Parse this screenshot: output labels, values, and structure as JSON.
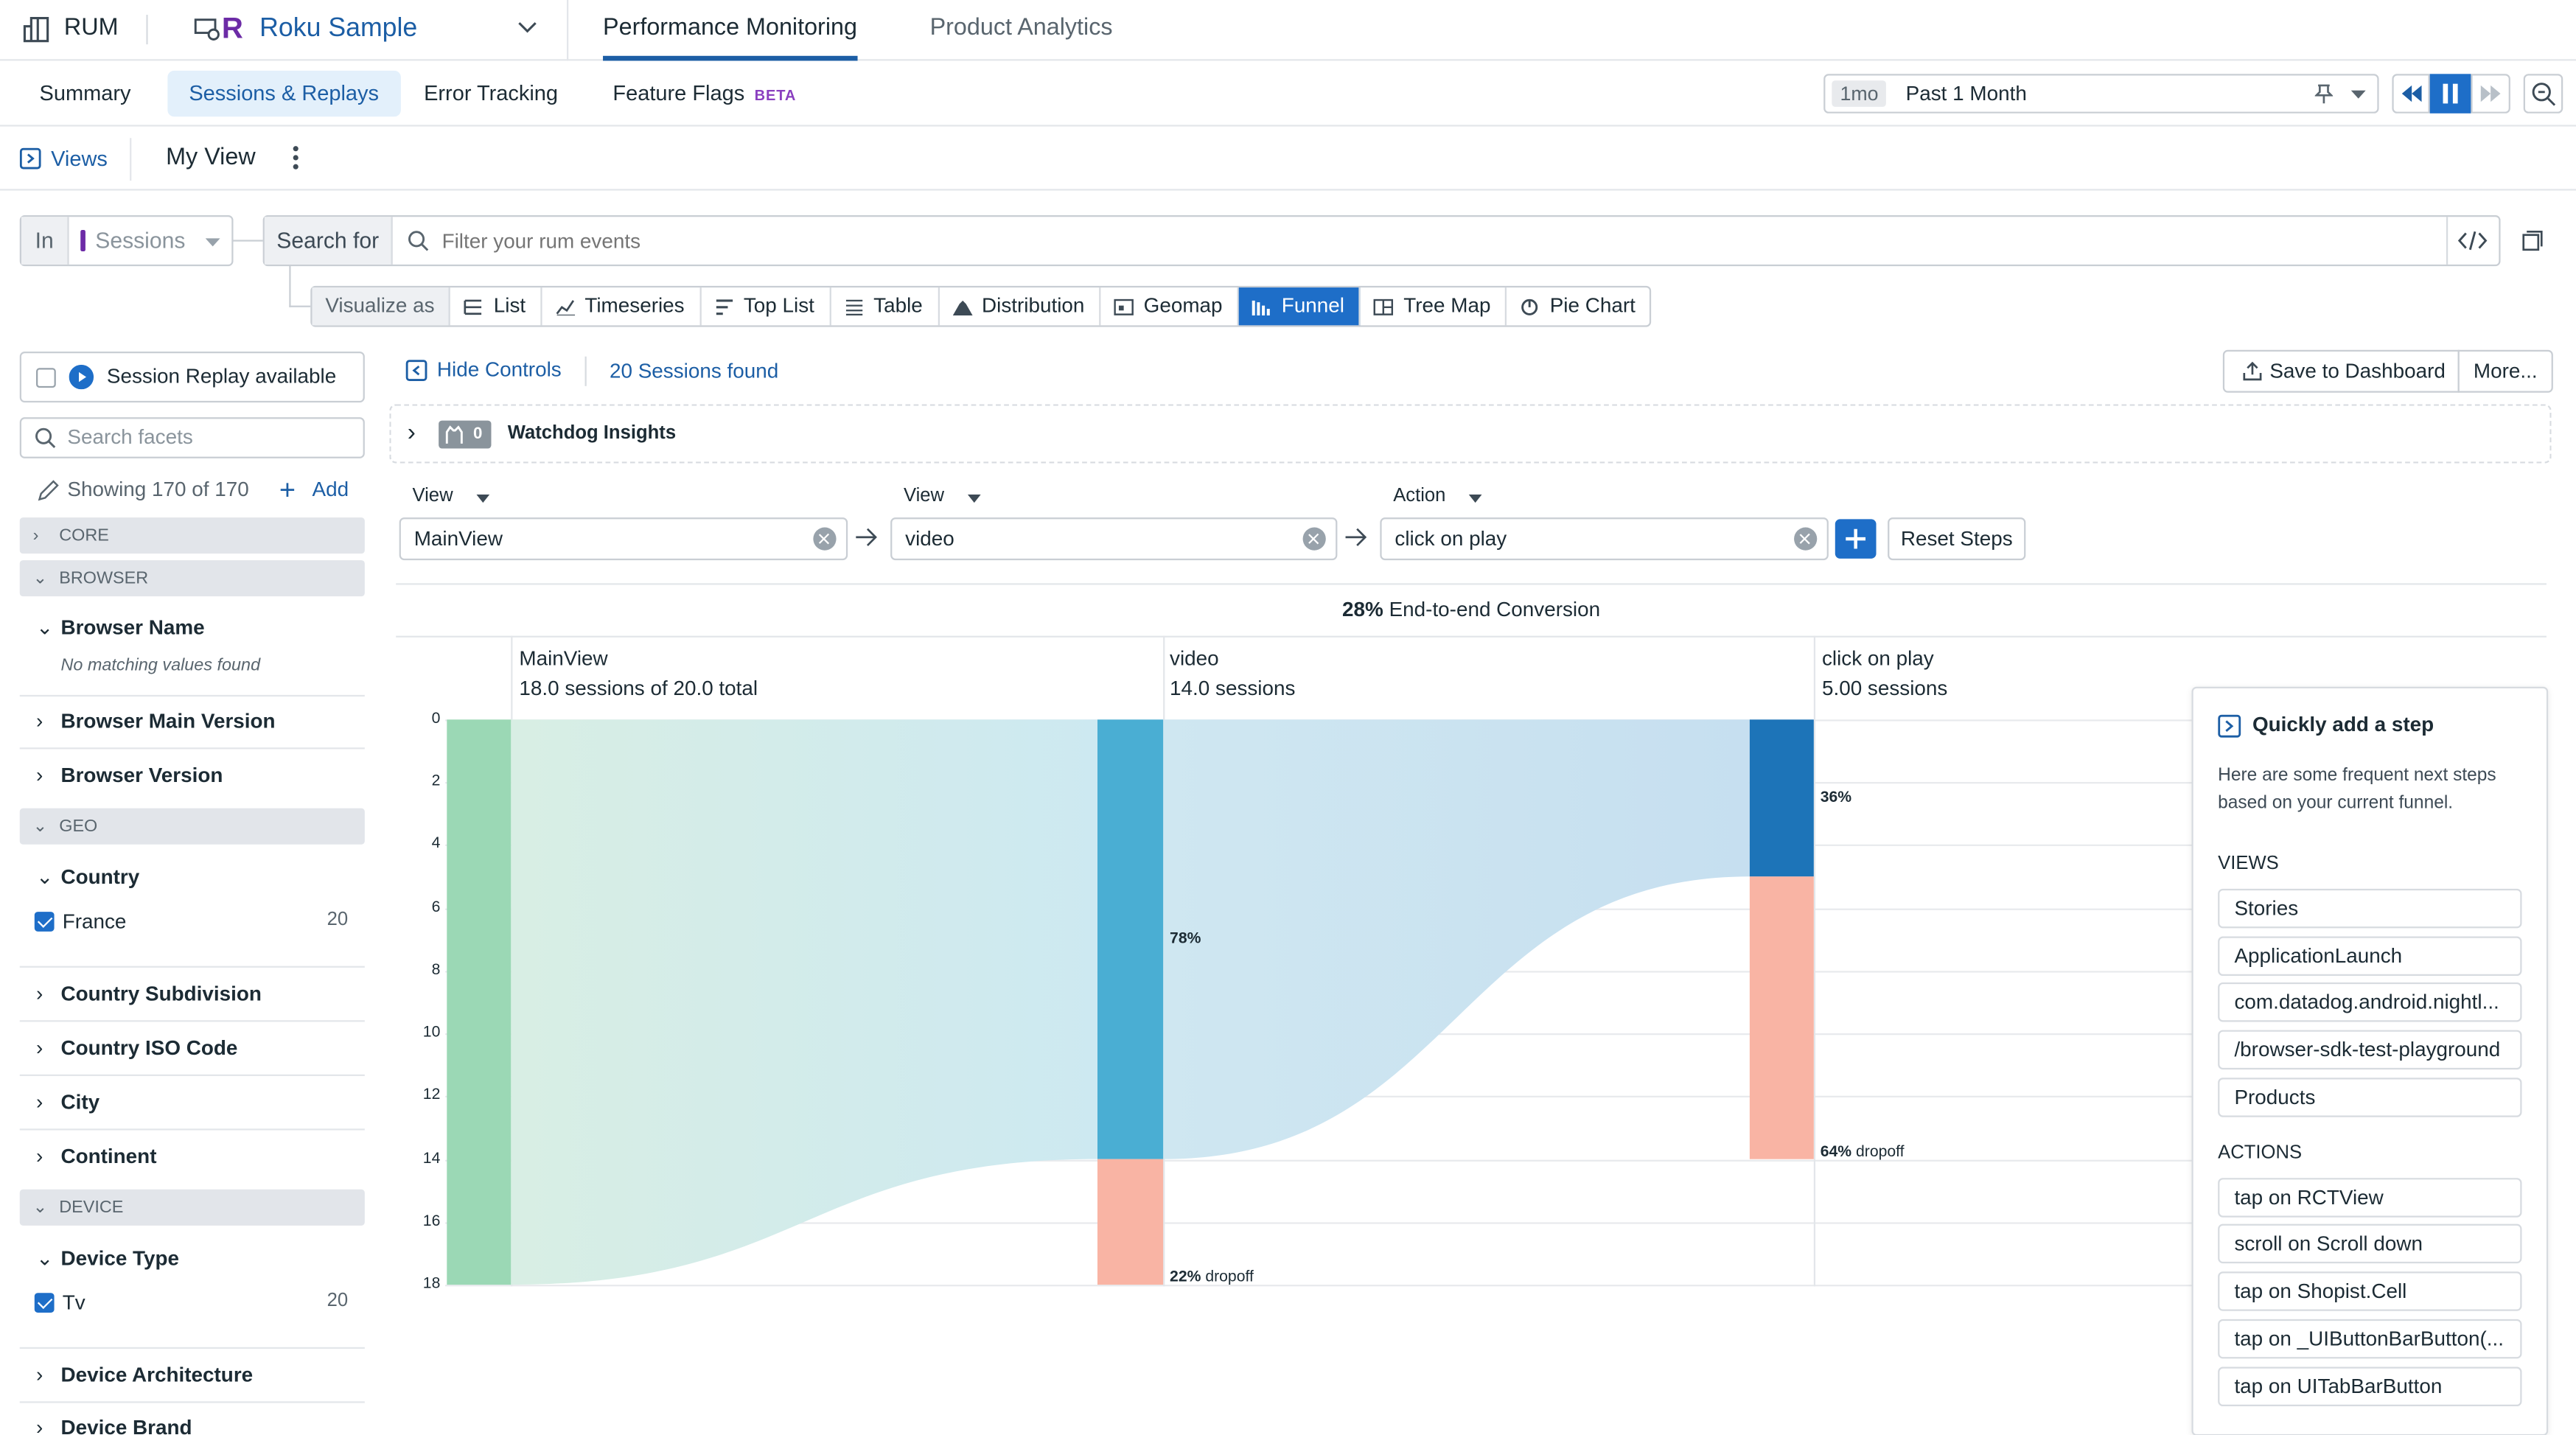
{
  "topbar": {
    "product": "RUM",
    "app_name": "Roku Sample",
    "tabs": [
      "Performance Monitoring",
      "Product Analytics"
    ]
  },
  "subnav": {
    "tabs": [
      "Summary",
      "Sessions & Replays",
      "Error Tracking",
      "Feature Flags"
    ],
    "beta": "BETA",
    "time_badge": "1mo",
    "time_label": "Past 1 Month"
  },
  "views": {
    "views_label": "Views",
    "current_view": "My View"
  },
  "search": {
    "in_label": "In",
    "scope": "Sessions",
    "search_for": "Search for",
    "placeholder": "Filter your rum events"
  },
  "visualize": {
    "label": "Visualize as",
    "options": [
      "List",
      "Timeseries",
      "Top List",
      "Table",
      "Distribution",
      "Geomap",
      "Funnel",
      "Tree Map",
      "Pie Chart"
    ],
    "active": "Funnel"
  },
  "facets": {
    "session_replay": "Session Replay available",
    "search_placeholder": "Search facets",
    "showing": "Showing 170 of 170",
    "add": "Add",
    "groups": {
      "core": "CORE",
      "browser": "BROWSER",
      "geo": "GEO",
      "device": "DEVICE"
    },
    "browser_name": "Browser Name",
    "no_match": "No matching values found",
    "browser_main_version": "Browser Main Version",
    "browser_version": "Browser Version",
    "country": "Country",
    "france": "France",
    "france_count": "20",
    "country_subdivision": "Country Subdivision",
    "country_iso": "Country ISO Code",
    "city": "City",
    "continent": "Continent",
    "device_type": "Device Type",
    "tv": "Tv",
    "tv_count": "20",
    "device_architecture": "Device Architecture",
    "device_brand": "Device Brand"
  },
  "controls": {
    "hide_controls": "Hide Controls",
    "sessions_found": "20 Sessions found",
    "save_dashboard": "Save to Dashboard",
    "more": "More...",
    "watchdog_count": "0",
    "watchdog": "Watchdog Insights"
  },
  "steps": [
    {
      "type": "View",
      "value": "MainView"
    },
    {
      "type": "View",
      "value": "video"
    },
    {
      "type": "Action",
      "value": "click on play"
    }
  ],
  "reset_steps": "Reset Steps",
  "conversion": {
    "pct": "28%",
    "label": "End-to-end Conversion"
  },
  "chart_data": {
    "type": "bar",
    "title": "",
    "categories": [
      "MainView",
      "video",
      "click on play"
    ],
    "subtitles": [
      "18.0 sessions of 20.0 total",
      "14.0 sessions",
      "5.00 sessions"
    ],
    "series": [
      {
        "values": [
          18,
          14,
          5
        ]
      },
      {
        "values": [
          0,
          4,
          9
        ]
      }
    ],
    "ylim": [
      0,
      18
    ],
    "yticks": [
      "0",
      "2",
      "4",
      "6",
      "8",
      "10",
      "12",
      "14",
      "16",
      "18"
    ],
    "labels": {
      "video_conv": "78%",
      "video_drop_pct": "22%",
      "click_conv": "36%",
      "click_drop_pct": "64%",
      "dropoff": "dropoff"
    },
    "colors": {
      "step1": "#9bd8b5",
      "step2": "#4aaed3",
      "step3": "#1d74b8",
      "dropoff": "#f9b4a4",
      "flow1": "#cde9f1",
      "flow2": "#c6dff0"
    }
  },
  "quick_add": {
    "title": "Quickly add a step",
    "desc1": "Here are some frequent next steps",
    "desc2": "based on your current funnel.",
    "views_label": "VIEWS",
    "views": [
      "Stories",
      "ApplicationLaunch",
      "com.datadog.android.nightl...",
      "/browser-sdk-test-playground",
      "Products"
    ],
    "actions_label": "ACTIONS",
    "actions": [
      "tap on RCTView",
      "scroll on Scroll down",
      "tap on Shopist.Cell",
      "tap on _UIButtonBarButton(...",
      "tap on UITabBarButton"
    ]
  }
}
